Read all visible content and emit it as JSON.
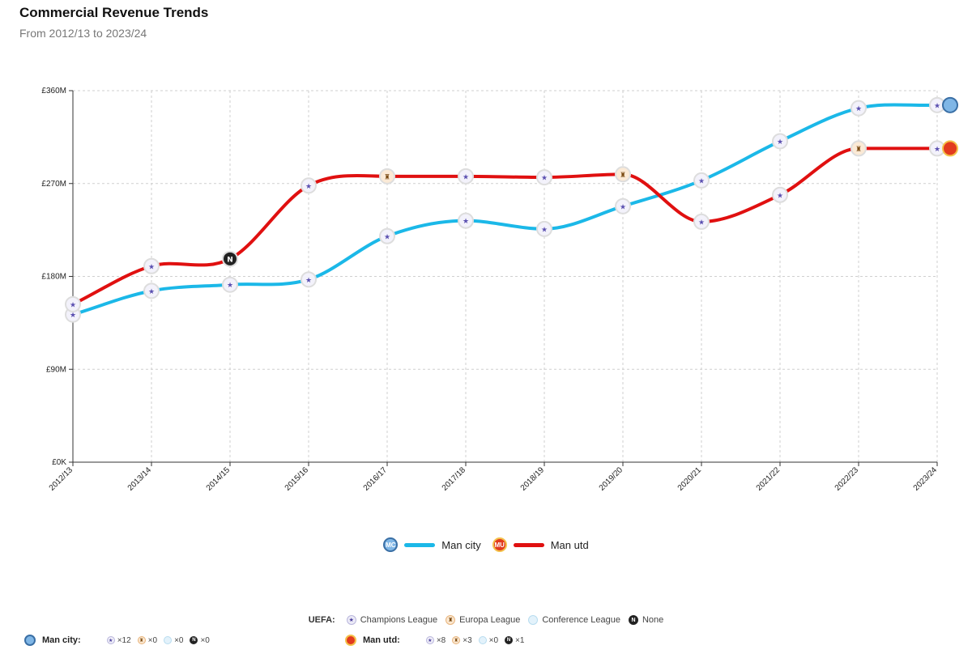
{
  "header": {
    "title": "Commercial Revenue Trends",
    "subtitle": "From 2012/13 to 2023/24"
  },
  "chart_data": {
    "type": "line",
    "title": "Commercial Revenue Trends",
    "subtitle": "From 2012/13 to 2023/24",
    "xlabel": "",
    "ylabel": "",
    "ylim": [
      0,
      360
    ],
    "y_ticks": [
      0,
      90,
      180,
      270,
      360
    ],
    "y_tick_labels": [
      "£0K",
      "£90M",
      "£180M",
      "£270M",
      "£360M"
    ],
    "grid": true,
    "legend_position": "bottom-center",
    "categories": [
      "2012/13",
      "2013/14",
      "2014/15",
      "2015/16",
      "2016/17",
      "2017/18",
      "2018/19",
      "2019/20",
      "2020/21",
      "2021/22",
      "2022/23",
      "2023/24"
    ],
    "series": [
      {
        "name": "Man city",
        "color": "#1bb8e8",
        "values": [
          143,
          166,
          172,
          177,
          219,
          234,
          226,
          248,
          273,
          311,
          343,
          346
        ],
        "competitions": [
          "CL",
          "CL",
          "CL",
          "CL",
          "CL",
          "CL",
          "CL",
          "CL",
          "CL",
          "CL",
          "CL",
          "CL"
        ]
      },
      {
        "name": "Man utd",
        "color": "#e01010",
        "values": [
          153,
          190,
          197,
          268,
          277,
          277,
          276,
          279,
          233,
          259,
          304,
          304
        ],
        "competitions": [
          "CL",
          "CL",
          "None",
          "CL",
          "EL",
          "CL",
          "CL",
          "EL",
          "CL",
          "CL",
          "EL",
          "CL"
        ]
      }
    ]
  },
  "legend": {
    "items": [
      {
        "label": "Man city",
        "icon": "man-city-crest-icon"
      },
      {
        "label": "Man utd",
        "icon": "man-utd-crest-icon"
      }
    ]
  },
  "competition_legend": {
    "label": "UEFA:",
    "items": [
      {
        "label": "Champions League",
        "icon": "champions-league-icon"
      },
      {
        "label": "Europa League",
        "icon": "europa-league-icon"
      },
      {
        "label": "Conference League",
        "icon": "conference-league-icon"
      },
      {
        "label": "None",
        "icon": "none-icon",
        "glyph": "N"
      }
    ]
  },
  "counts": {
    "city": {
      "team": "Man city:",
      "cl": "×12",
      "el": "×0",
      "conf": "×0",
      "none": "×0"
    },
    "utd": {
      "team": "Man utd:",
      "cl": "×8",
      "el": "×3",
      "conf": "×0",
      "none": "×1"
    }
  }
}
